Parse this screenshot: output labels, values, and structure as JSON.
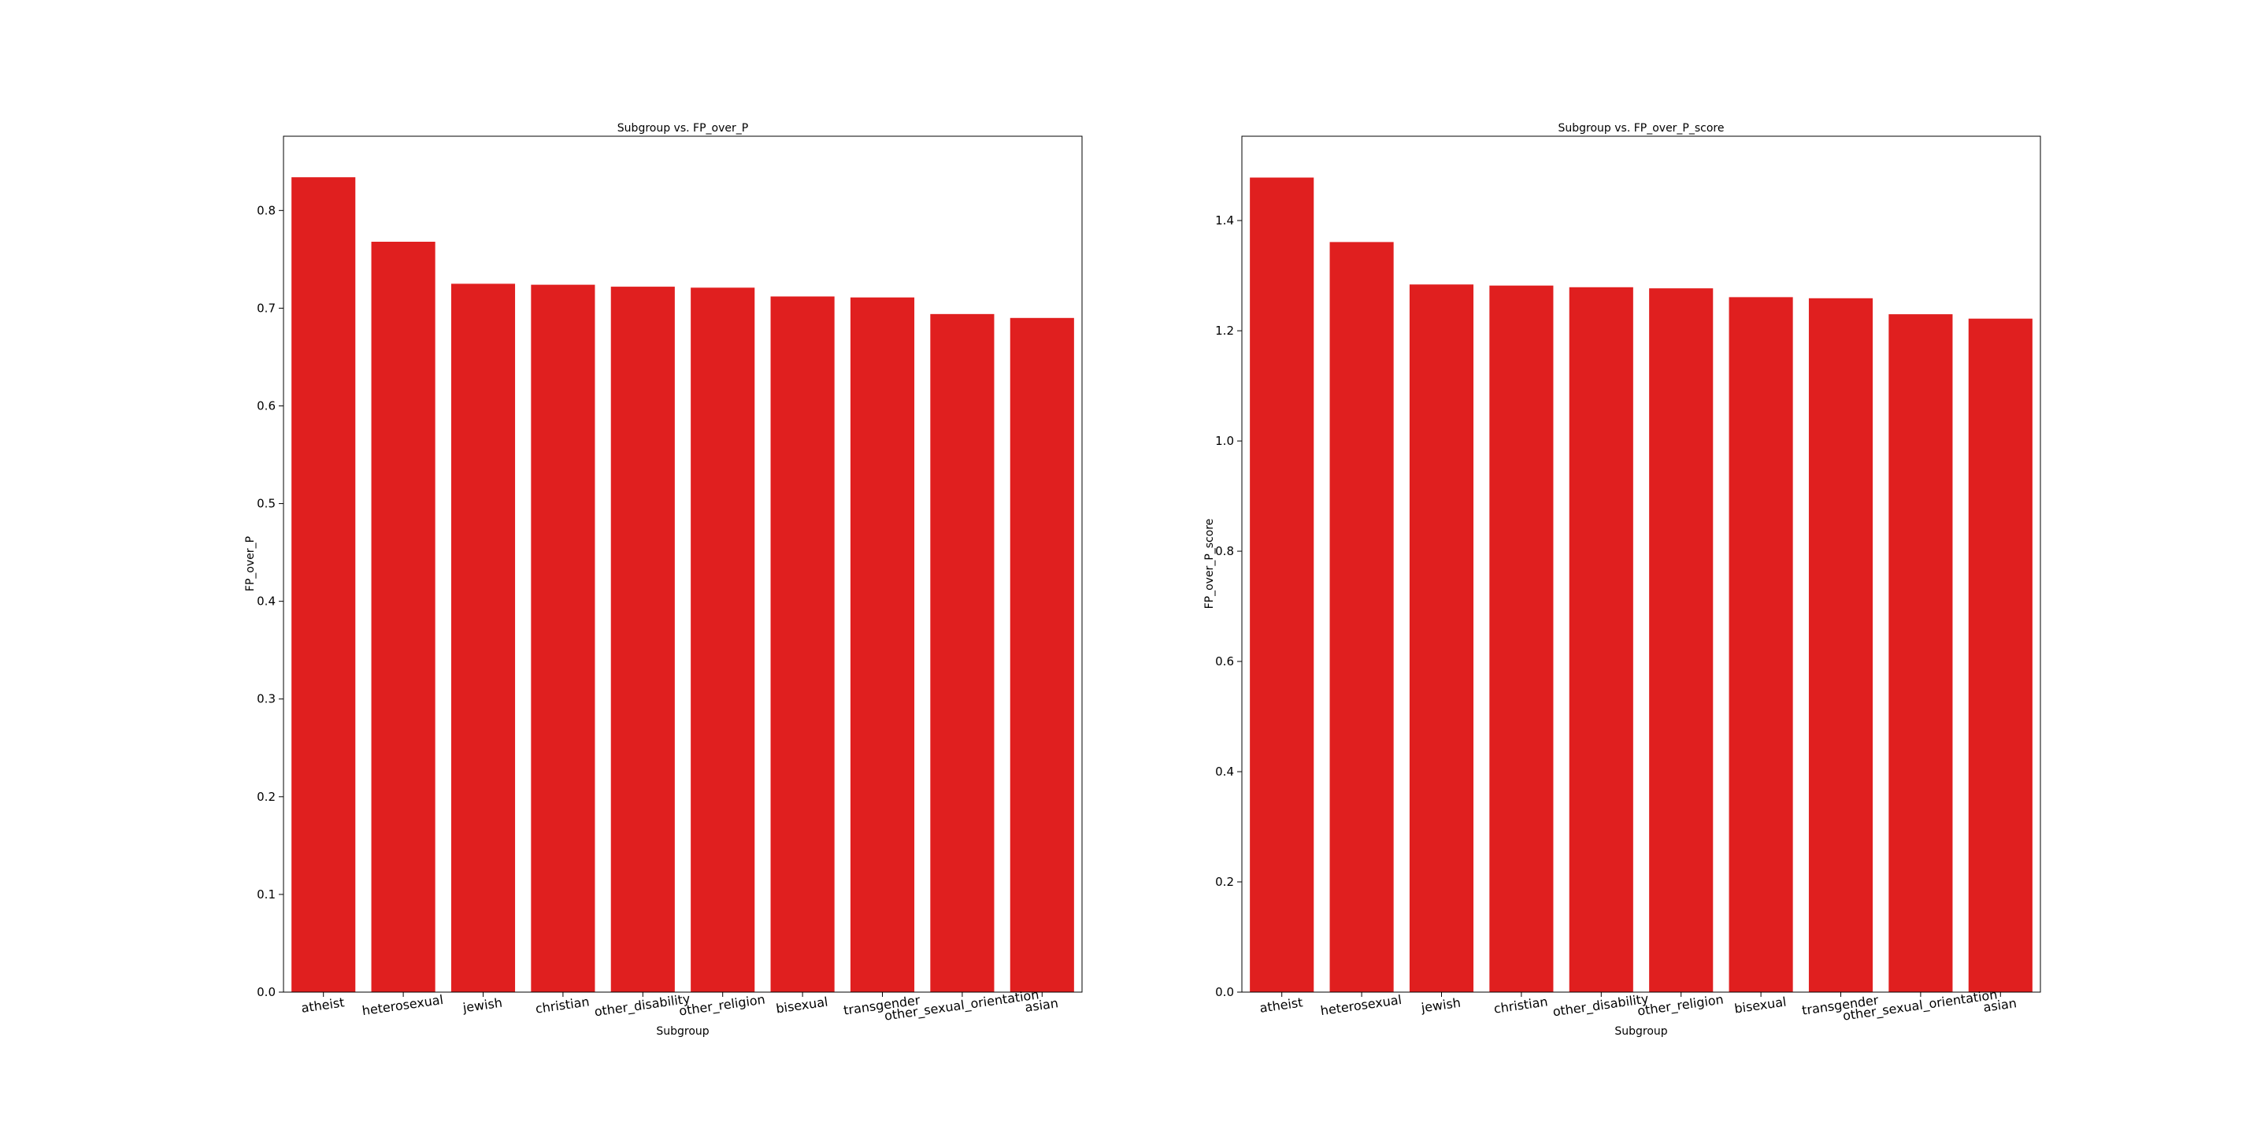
{
  "chart_data": [
    {
      "type": "bar",
      "title": "Subgroup vs. FP_over_P",
      "xlabel": "Subgroup",
      "ylabel": "FP_over_P",
      "categories": [
        "atheist",
        "heterosexual",
        "jewish",
        "christian",
        "other_disability",
        "other_religion",
        "bisexual",
        "transgender",
        "other_sexual_orientation",
        "asian"
      ],
      "values": [
        0.834,
        0.768,
        0.725,
        0.724,
        0.722,
        0.721,
        0.712,
        0.711,
        0.694,
        0.69
      ],
      "ylim": [
        0,
        0.876
      ],
      "yticks": [
        0.0,
        0.1,
        0.2,
        0.3,
        0.4,
        0.5,
        0.6,
        0.7,
        0.8
      ],
      "ytick_labels": [
        "0.0",
        "0.1",
        "0.2",
        "0.3",
        "0.4",
        "0.5",
        "0.6",
        "0.7",
        "0.8"
      ],
      "bar_color": "#e01f1f",
      "grid": false,
      "legend": "none"
    },
    {
      "type": "bar",
      "title": "Subgroup vs. FP_over_P_score",
      "xlabel": "Subgroup",
      "ylabel": "FP_over_P_score",
      "categories": [
        "atheist",
        "heterosexual",
        "jewish",
        "christian",
        "other_disability",
        "other_religion",
        "bisexual",
        "transgender",
        "other_sexual_orientation",
        "asian"
      ],
      "values": [
        1.478,
        1.361,
        1.284,
        1.282,
        1.279,
        1.277,
        1.261,
        1.259,
        1.23,
        1.222
      ],
      "ylim": [
        0,
        1.553
      ],
      "yticks": [
        0.0,
        0.2,
        0.4,
        0.6,
        0.8,
        1.0,
        1.2,
        1.4
      ],
      "ytick_labels": [
        "0.0",
        "0.2",
        "0.4",
        "0.6",
        "0.8",
        "1.0",
        "1.2",
        "1.4"
      ],
      "bar_color": "#e01f1f",
      "grid": false,
      "legend": "none"
    }
  ]
}
